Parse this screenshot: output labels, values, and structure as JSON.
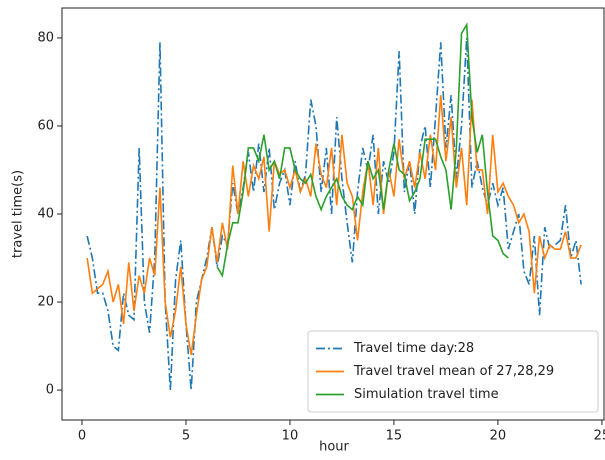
{
  "chart_data": {
    "type": "line",
    "xlabel": "hour",
    "ylabel": "travel time(s)",
    "xlim": [
      -0.96,
      25.1
    ],
    "ylim": [
      -6.8,
      86.8
    ],
    "xticks": [
      0,
      5,
      10,
      15,
      20,
      25
    ],
    "yticks": [
      0,
      20,
      40,
      60,
      80
    ],
    "legend": "lower right",
    "series": [
      {
        "name": "Travel time day:28",
        "color": "#1f77b4",
        "linestyle": "dashdot",
        "x": [
          0.25,
          0.5,
          0.75,
          1,
          1.25,
          1.5,
          1.75,
          2,
          2.25,
          2.5,
          2.75,
          3,
          3.25,
          3.5,
          3.75,
          4,
          4.25,
          4.5,
          4.75,
          5,
          5.25,
          5.5,
          5.75,
          6,
          6.25,
          6.5,
          6.75,
          7,
          7.25,
          7.5,
          7.75,
          8,
          8.25,
          8.5,
          8.75,
          9,
          9.25,
          9.5,
          9.75,
          10,
          10.25,
          10.5,
          10.75,
          11,
          11.25,
          11.5,
          11.75,
          12,
          12.25,
          12.5,
          12.75,
          13,
          13.25,
          13.5,
          13.75,
          14,
          14.25,
          14.5,
          14.75,
          15,
          15.25,
          15.5,
          15.75,
          16,
          16.25,
          16.5,
          16.75,
          17,
          17.25,
          17.5,
          17.75,
          18,
          18.25,
          18.5,
          18.75,
          19,
          19.25,
          19.5,
          19.75,
          20,
          20.25,
          20.5,
          20.75,
          21,
          21.25,
          21.5,
          21.75,
          22,
          22.25,
          22.5,
          22.75,
          23,
          23.25,
          23.5,
          23.75,
          24
        ],
        "values": [
          35,
          30,
          22,
          22,
          18,
          10,
          9,
          22,
          17,
          16,
          55,
          20,
          13,
          30,
          79,
          20,
          0,
          25,
          34,
          15,
          0,
          20,
          25,
          30,
          37,
          28,
          35,
          33,
          47,
          40,
          46,
          54,
          45,
          56,
          45,
          55,
          41,
          47,
          50,
          42,
          52,
          45,
          49,
          66,
          60,
          45,
          55,
          40,
          62,
          48,
          38,
          29,
          45,
          55,
          50,
          58,
          40,
          52,
          47,
          54,
          77,
          45,
          52,
          40,
          55,
          60,
          46,
          62,
          79,
          55,
          67,
          48,
          60,
          80,
          46,
          52,
          46,
          42,
          47,
          42,
          46,
          32,
          36,
          40,
          27,
          24,
          35,
          17,
          37,
          32,
          33,
          34,
          42,
          30,
          34,
          24
        ]
      },
      {
        "name": "Travel travel mean of 27,28,29",
        "color": "#ff7f0e",
        "linestyle": "solid",
        "x": [
          0.25,
          0.5,
          0.75,
          1,
          1.25,
          1.5,
          1.75,
          2,
          2.25,
          2.5,
          2.75,
          3,
          3.25,
          3.5,
          3.75,
          4,
          4.25,
          4.5,
          4.75,
          5,
          5.25,
          5.5,
          5.75,
          6,
          6.25,
          6.5,
          6.75,
          7,
          7.25,
          7.5,
          7.75,
          8,
          8.25,
          8.5,
          8.75,
          9,
          9.25,
          9.5,
          9.75,
          10,
          10.25,
          10.5,
          10.75,
          11,
          11.25,
          11.5,
          11.75,
          12,
          12.25,
          12.5,
          12.75,
          13,
          13.25,
          13.5,
          13.75,
          14,
          14.25,
          14.5,
          14.75,
          15,
          15.25,
          15.5,
          15.75,
          16,
          16.25,
          16.5,
          16.75,
          17,
          17.25,
          17.5,
          17.75,
          18,
          18.25,
          18.5,
          18.75,
          19,
          19.25,
          19.5,
          19.75,
          20,
          20.25,
          20.5,
          20.75,
          21,
          21.25,
          21.5,
          21.75,
          22,
          22.25,
          22.5,
          22.75,
          23,
          23.25,
          23.5,
          23.75,
          24
        ],
        "values": [
          30,
          22,
          23,
          24,
          27,
          20,
          24,
          15,
          29,
          18,
          26,
          22,
          30,
          26,
          46,
          20,
          12,
          18,
          28,
          15,
          8,
          17,
          25,
          28,
          37,
          29,
          38,
          32,
          51,
          40,
          52,
          44,
          51,
          48,
          53,
          36,
          52,
          49,
          50,
          46,
          50,
          45,
          48,
          44,
          56,
          49,
          46,
          55,
          42,
          58,
          47,
          44,
          34,
          45,
          52,
          42,
          55,
          40,
          50,
          44,
          57,
          48,
          52,
          46,
          54,
          48,
          58,
          50,
          67,
          52,
          62,
          46,
          55,
          42,
          66,
          50,
          50,
          40,
          58,
          45,
          47,
          44,
          42,
          38,
          40,
          36,
          22,
          35,
          30,
          33,
          32,
          32,
          36,
          30,
          30,
          33
        ]
      },
      {
        "name": "Simulation travel time",
        "color": "#2ca02c",
        "linestyle": "solid",
        "x": [
          6.5,
          6.75,
          7,
          7.25,
          7.5,
          7.75,
          8,
          8.25,
          8.5,
          8.75,
          9,
          9.25,
          9.5,
          9.75,
          10,
          10.25,
          10.5,
          10.75,
          11,
          11.25,
          11.5,
          11.75,
          12,
          12.25,
          12.5,
          12.75,
          13,
          13.25,
          13.5,
          13.75,
          14,
          14.25,
          14.5,
          14.75,
          15,
          15.25,
          15.5,
          15.75,
          16,
          16.25,
          16.5,
          16.75,
          17,
          17.25,
          17.5,
          17.75,
          18,
          18.25,
          18.5,
          18.75,
          19,
          19.25,
          19.5,
          19.75,
          20,
          20.25,
          20.5
        ],
        "values": [
          28,
          26,
          33,
          38,
          38,
          45,
          55,
          55,
          52,
          58,
          50,
          52,
          48,
          55,
          55,
          50,
          48,
          47,
          49,
          44,
          41,
          44,
          46,
          48,
          44,
          42,
          41,
          44,
          42,
          52,
          48,
          50,
          41,
          50,
          56,
          50,
          49,
          43,
          45,
          48,
          57,
          57,
          57,
          53,
          50,
          41,
          55,
          81,
          83,
          62,
          54,
          58,
          45,
          35,
          34,
          31,
          30
        ]
      }
    ]
  }
}
